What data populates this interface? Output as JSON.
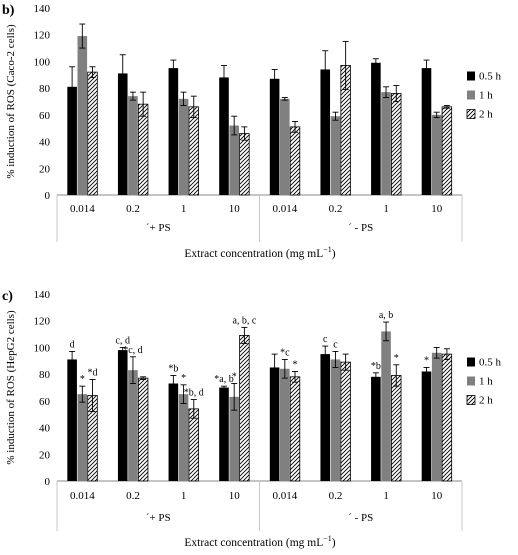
{
  "chart_data": [
    {
      "type": "bar",
      "panel_label": "b)",
      "ylabel": "% induction of ROS (Caco-2 cells)",
      "xlabel": "Extract concentration (mg mL",
      "xlabel_sup": "−1",
      "xlabel_close": ")",
      "ylim": [
        0,
        140
      ],
      "yticks": [
        "0",
        "20",
        "40",
        "60",
        "80",
        "100",
        "120",
        "140"
      ],
      "grid": false,
      "legend_position": "right",
      "categories": [
        "0.014",
        "0.2",
        "1",
        "10",
        "0.014",
        "0.2",
        "1",
        "10"
      ],
      "groups": [
        "´+ PS",
        "´ - PS"
      ],
      "series": [
        {
          "name": "0.5 h",
          "values": [
            81,
            91,
            95,
            88,
            87,
            94,
            99,
            95
          ],
          "errors": [
            15,
            14,
            6,
            9,
            7,
            14,
            3,
            6
          ],
          "color": "#000000"
        },
        {
          "name": "1 h",
          "values": [
            119,
            74,
            72,
            52,
            72,
            59,
            77,
            60
          ],
          "errors": [
            9,
            3,
            5,
            7,
            1,
            3,
            4,
            2
          ],
          "color": "#808080"
        },
        {
          "name": "2 h",
          "values": [
            92,
            68,
            66,
            46,
            51,
            97,
            76,
            66
          ],
          "errors": [
            4,
            9,
            8,
            5,
            4,
            18,
            6,
            1
          ],
          "color": "hatch"
        }
      ]
    },
    {
      "type": "bar",
      "panel_label": "c)",
      "ylabel": "% induction of ROS (HepG2 cells)",
      "xlabel": "Extract concentration (mg mL",
      "xlabel_sup": "−1",
      "xlabel_close": ")",
      "ylim": [
        0,
        140
      ],
      "yticks": [
        "0",
        "20",
        "40",
        "60",
        "80",
        "100",
        "120",
        "140"
      ],
      "grid": false,
      "legend_position": "right",
      "categories": [
        "0.014",
        "0.2",
        "1",
        "10",
        "0.014",
        "0.2",
        "1",
        "10"
      ],
      "groups": [
        "´+ PS",
        "´ - PS"
      ],
      "series": [
        {
          "name": "0.5 h",
          "values": [
            91,
            98,
            73,
            70,
            85,
            95,
            78,
            82
          ],
          "errors": [
            6,
            2,
            6,
            1,
            10,
            6,
            3,
            3
          ],
          "color": "#000000"
        },
        {
          "name": "1 h",
          "values": [
            65,
            83,
            65,
            63,
            84,
            91,
            112,
            96
          ],
          "errors": [
            6,
            10,
            7,
            10,
            7,
            6,
            7,
            4
          ],
          "color": "#808080"
        },
        {
          "name": "2 h",
          "values": [
            64,
            77,
            54,
            109,
            78,
            89,
            79,
            95
          ],
          "errors": [
            12,
            1,
            7,
            6,
            4,
            6,
            8,
            4
          ],
          "color": "hatch"
        }
      ],
      "annotations": [
        {
          "category_index": 0,
          "series_index": 0,
          "text": "d"
        },
        {
          "category_index": 0,
          "series_index": 1,
          "text": "*"
        },
        {
          "category_index": 0,
          "series_index": 2,
          "text": "*d"
        },
        {
          "category_index": 1,
          "series_index": 0,
          "text": "c, d"
        },
        {
          "category_index": 1,
          "series_index": 1,
          "text": "*c, d"
        },
        {
          "category_index": 2,
          "series_index": 0,
          "text": "*b"
        },
        {
          "category_index": 2,
          "series_index": 1,
          "text": "*"
        },
        {
          "category_index": 2,
          "series_index": 2,
          "text": "*b, d"
        },
        {
          "category_index": 3,
          "series_index": 0,
          "text": "*a, b"
        },
        {
          "category_index": 3,
          "series_index": 1,
          "text": "*"
        },
        {
          "category_index": 3,
          "series_index": 2,
          "text": "a, b, c"
        },
        {
          "category_index": 4,
          "series_index": 1,
          "text": "*c"
        },
        {
          "category_index": 4,
          "series_index": 2,
          "text": "*"
        },
        {
          "category_index": 5,
          "series_index": 0,
          "text": "c"
        },
        {
          "category_index": 5,
          "series_index": 1,
          "text": "c"
        },
        {
          "category_index": 6,
          "series_index": 0,
          "text": "*b"
        },
        {
          "category_index": 6,
          "series_index": 1,
          "text": "a, b"
        },
        {
          "category_index": 6,
          "series_index": 2,
          "text": "*"
        },
        {
          "category_index": 7,
          "series_index": 0,
          "text": "*"
        }
      ]
    }
  ]
}
